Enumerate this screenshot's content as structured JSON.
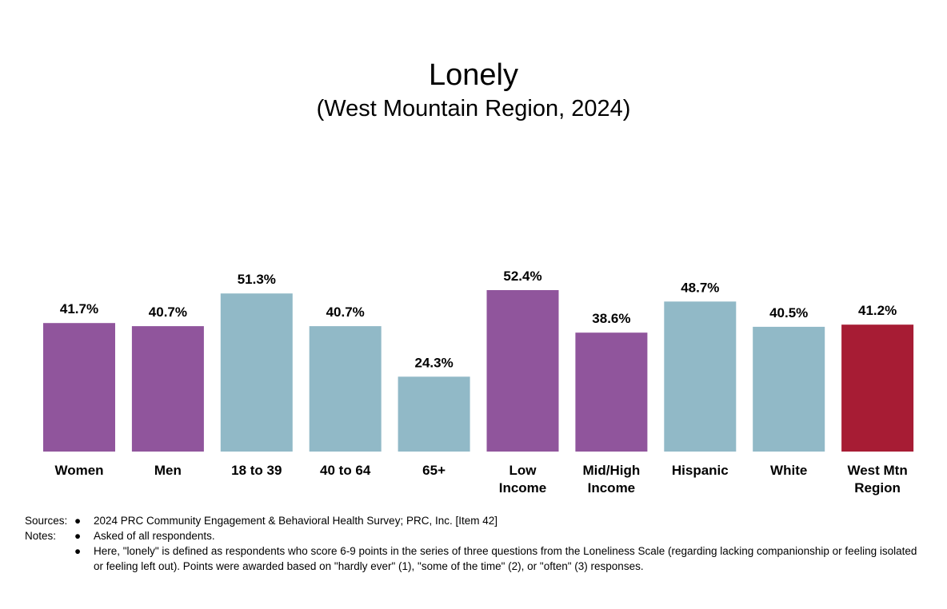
{
  "chart_data": {
    "type": "bar",
    "title": "Lonely",
    "subtitle": "(West Mountain Region, 2024)",
    "categories": [
      [
        "Women"
      ],
      [
        "Men"
      ],
      [
        "18 to 39"
      ],
      [
        "40 to 64"
      ],
      [
        "65+"
      ],
      [
        "Low",
        "Income"
      ],
      [
        "Mid/High",
        "Income"
      ],
      [
        "Hispanic"
      ],
      [
        "White"
      ],
      [
        "West Mtn",
        "Region"
      ]
    ],
    "values": [
      41.7,
      40.7,
      51.3,
      40.7,
      24.3,
      52.4,
      38.6,
      48.7,
      40.5,
      41.2
    ],
    "value_labels": [
      "41.7%",
      "40.7%",
      "51.3%",
      "40.7%",
      "24.3%",
      "52.4%",
      "38.6%",
      "48.7%",
      "40.5%",
      "41.2%"
    ],
    "bar_colors": [
      "#90559c",
      "#90559c",
      "#91b9c7",
      "#91b9c7",
      "#91b9c7",
      "#90559c",
      "#90559c",
      "#91b9c7",
      "#91b9c7",
      "#a71c34"
    ],
    "ylim": [
      0,
      52.4
    ],
    "grid": false,
    "legend": "none"
  },
  "footnotes": {
    "sources_label": "Sources:",
    "notes_label": "Notes:",
    "sources": [
      "2024 PRC Community Engagement & Behavioral Health Survey; PRC, Inc. [Item 42]"
    ],
    "notes": [
      "Asked of all respondents.",
      " Here, \"lonely\" is defined as respondents who score 6-9 points in the series of  three questions from the Loneliness Scale (regarding lacking companionship or feeling isolated or feeling left out). Points were awarded based on \"hardly ever\" (1), \"some of the time\" (2), or \"often\" (3) responses."
    ],
    "bullet": "●"
  }
}
